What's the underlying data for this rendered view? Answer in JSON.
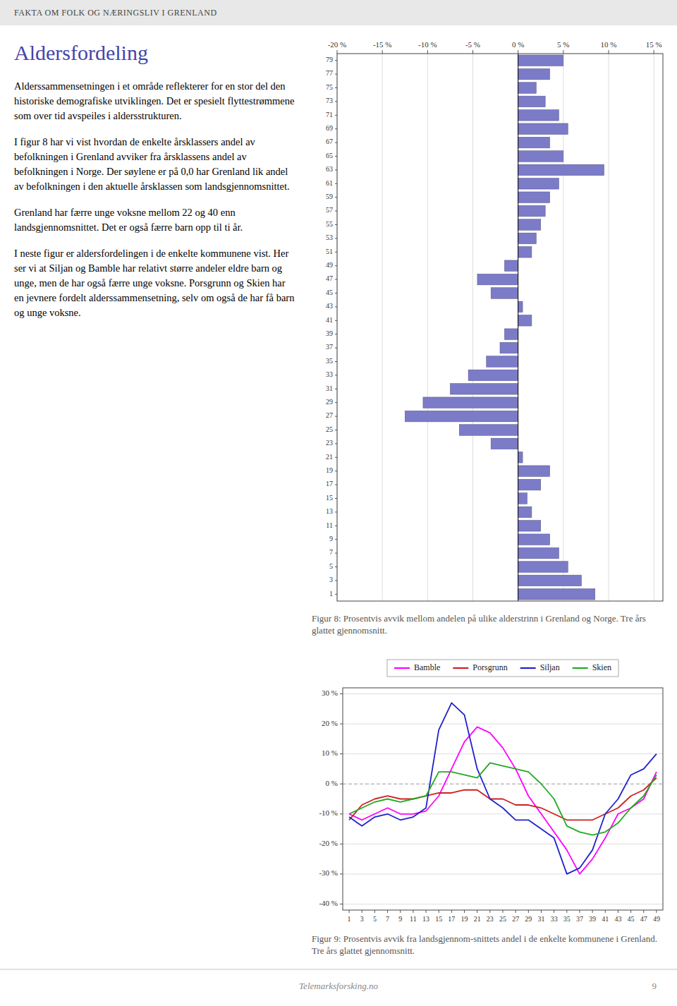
{
  "page_title": "FAKTA OM FOLK OG NÆRINGSLIV I GRENLAND",
  "section_title": "Aldersfordeling",
  "body_text": [
    "Alderssammensetningen i et område reflekterer for en stor del den historiske demografiske utviklingen.  Det er spesielt flyttestrømmene som over tid avspeiles i aldersstrukturen.",
    "I figur 8 har vi vist hvordan de enkelte årsklassers andel av befolkningen i Grenland avviker fra årsklassens andel av befolkningen i Norge. Der søylene er på 0,0 har Grenland lik andel av befolkningen i den aktuelle årsklassen som landsgjennomsnittet.",
    "Grenland har færre unge voksne mellom 22 og 40 enn landsgjennomsnittet. Det er også færre barn opp til ti år.",
    "I neste figur er aldersfordelingen i de enkelte kommunene vist. Her ser vi at Siljan og Bamble har relativt større andeler eldre barn og unge, men de har også færre unge voksne. Porsgrunn og Skien har en jevnere fordelt alderssammensetning, selv om også de har få barn og unge voksne."
  ],
  "footer_text": "Telemarksforsking.no",
  "footer_page": "9",
  "chart_data": [
    {
      "type": "bar",
      "orientation": "horizontal",
      "title": "Figur 8: Prosentvis avvik mellom andelen på ulike alderstrinn i Grenland og Norge. Tre års glattet gjennomsnitt.",
      "categories": [
        "1",
        "3",
        "5",
        "7",
        "9",
        "11",
        "13",
        "15",
        "17",
        "19",
        "21",
        "23",
        "25",
        "27",
        "29",
        "31",
        "33",
        "35",
        "37",
        "39",
        "41",
        "43",
        "45",
        "47",
        "49",
        "51",
        "53",
        "55",
        "57",
        "59",
        "61",
        "63",
        "65",
        "67",
        "69",
        "71",
        "73",
        "75",
        "77",
        "79"
      ],
      "values": [
        8.5,
        7.0,
        5.5,
        4.5,
        3.5,
        2.5,
        1.5,
        1.0,
        2.5,
        3.5,
        0.5,
        -3.0,
        -6.5,
        -12.5,
        -10.5,
        -7.5,
        -5.5,
        -3.5,
        -2.0,
        -1.5,
        1.5,
        0.5,
        -3.0,
        -4.5,
        -1.5,
        1.5,
        2.0,
        2.5,
        3.0,
        3.5,
        4.5,
        9.5,
        5.0,
        3.5,
        5.5,
        4.5,
        3.0,
        2.0,
        3.5,
        5.0
      ],
      "color": "#7B7BC8",
      "xlim": [
        -20,
        16
      ],
      "xticks": [
        {
          "value": -20,
          "label": "-20 %"
        },
        {
          "value": -15,
          "label": "-15 %"
        },
        {
          "value": -10,
          "label": "-10 %"
        },
        {
          "value": -5,
          "label": "-5 %"
        },
        {
          "value": 0,
          "label": "0 %"
        },
        {
          "value": 5,
          "label": "5 %"
        },
        {
          "value": 10,
          "label": "10 %"
        },
        {
          "value": 15,
          "label": "15 %"
        }
      ],
      "grid": true
    },
    {
      "type": "line",
      "title": "Figur 9: Prosentvis avvik fra landsgjennom-snittets andel i de enkelte kommunene i Grenland. Tre års glattet gjennomsnitt.",
      "x": [
        1,
        3,
        5,
        7,
        9,
        11,
        13,
        15,
        17,
        19,
        21,
        23,
        25,
        27,
        29,
        31,
        33,
        35,
        37,
        39,
        41,
        43,
        45,
        47,
        49
      ],
      "series": [
        {
          "name": "Bamble",
          "color": "#FF00FF",
          "values": [
            -10,
            -12,
            -10,
            -8,
            -10,
            -10,
            -9,
            -4,
            5,
            14,
            19,
            17,
            12,
            5,
            -4,
            -10,
            -16,
            -22,
            -30,
            -25,
            -18,
            -10,
            -8,
            -5,
            4
          ]
        },
        {
          "name": "Porsgrunn",
          "color": "#CC2222",
          "values": [
            -12,
            -7,
            -5,
            -4,
            -5,
            -5,
            -4,
            -3,
            -3,
            -2,
            -2,
            -5,
            -5,
            -7,
            -7,
            -8,
            -10,
            -12,
            -12,
            -12,
            -10,
            -8,
            -4,
            -2,
            2
          ]
        },
        {
          "name": "Siljan",
          "color": "#2222CC",
          "values": [
            -11,
            -14,
            -11,
            -10,
            -12,
            -11,
            -8,
            18,
            27,
            23,
            5,
            -5,
            -8,
            -12,
            -12,
            -15,
            -18,
            -30,
            -28,
            -22,
            -10,
            -5,
            3,
            5,
            10
          ]
        },
        {
          "name": "Skien",
          "color": "#22AA22",
          "values": [
            -10,
            -8,
            -6,
            -5,
            -6,
            -5,
            -4,
            4,
            4,
            3,
            2,
            7,
            6,
            5,
            4,
            0,
            -5,
            -14,
            -16,
            -17,
            -16,
            -13,
            -8,
            -4,
            3
          ]
        }
      ],
      "xlim": [
        0,
        50
      ],
      "xticks": [
        1,
        3,
        5,
        7,
        9,
        11,
        13,
        15,
        17,
        19,
        21,
        23,
        25,
        27,
        29,
        31,
        33,
        35,
        37,
        39,
        41,
        43,
        45,
        47,
        49
      ],
      "ylim": [
        -42,
        32
      ],
      "yticks": [
        {
          "value": -40,
          "label": "-40 %"
        },
        {
          "value": -30,
          "label": "-30 %"
        },
        {
          "value": -20,
          "label": "-20 %"
        },
        {
          "value": -10,
          "label": "-10 %"
        },
        {
          "value": 0,
          "label": "0 %"
        },
        {
          "value": 10,
          "label": "10 %"
        },
        {
          "value": 20,
          "label": "20 %"
        },
        {
          "value": 30,
          "label": "30 %"
        }
      ],
      "grid": true,
      "legend": "top"
    }
  ]
}
